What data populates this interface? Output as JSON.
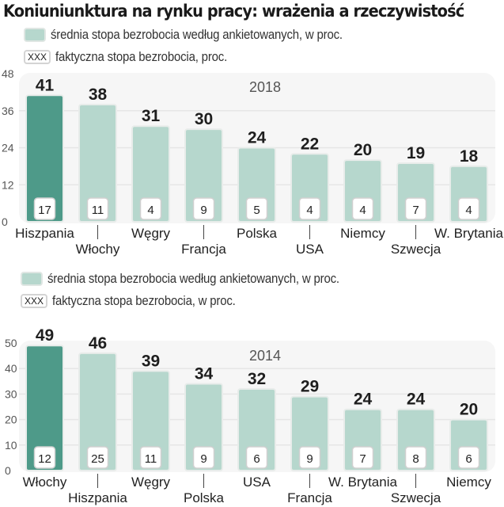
{
  "title": "Koniuniunktura na rynku pracy: wrażenia a rzeczywistość",
  "colors": {
    "highlight_bar": "#4e9a89",
    "bar": "#b6d7cd",
    "panel_bg": "#f6f6f6",
    "grid": "#e6e6e6"
  },
  "chart_data": [
    {
      "type": "bar",
      "title": "2018",
      "legend": {
        "survey_label": "średnia stopa bezrobocia według ankietowanych, w proc.",
        "actual_swatch": "XXX",
        "actual_label": "faktyczna stopa bezrobocia, proc."
      },
      "categories": [
        "Hiszpania",
        "Włochy",
        "Węgry",
        "Francja",
        "Polska",
        "USA",
        "Niemcy",
        "Szwecja",
        "W. Brytania"
      ],
      "series": [
        {
          "name": "średnia stopa bezrobocia według ankietowanych, w proc.",
          "values": [
            41,
            38,
            31,
            30,
            24,
            22,
            20,
            19,
            18
          ]
        },
        {
          "name": "faktyczna stopa bezrobocia, proc.",
          "values": [
            17,
            11,
            4,
            9,
            5,
            4,
            4,
            7,
            4
          ]
        }
      ],
      "highlight_index": 0,
      "yticks": [
        "0",
        "12",
        "24",
        "36",
        "48"
      ],
      "ylim": [
        0,
        48
      ],
      "xlabel": "",
      "ylabel": "",
      "grid": true
    },
    {
      "type": "bar",
      "title": "2014",
      "legend": {
        "survey_label": "średnia stopa bezrobocia według ankietowanych, w proc.",
        "actual_swatch": "XXX",
        "actual_label": "faktyczna stopa bezrobocia, w proc."
      },
      "categories": [
        "Włochy",
        "Hiszpania",
        "Węgry",
        "Polska",
        "USA",
        "Francja",
        "W. Brytania",
        "Szwecja",
        "Niemcy"
      ],
      "series": [
        {
          "name": "średnia stopa bezrobocia według ankietowanych, w proc.",
          "values": [
            49,
            46,
            39,
            34,
            32,
            29,
            24,
            24,
            20
          ]
        },
        {
          "name": "faktyczna stopa bezrobocia, w proc.",
          "values": [
            12,
            25,
            11,
            9,
            6,
            9,
            7,
            8,
            6
          ]
        }
      ],
      "highlight_index": 0,
      "yticks": [
        "0",
        "10",
        "20",
        "30",
        "40",
        "50"
      ],
      "ylim": [
        0,
        50
      ],
      "xlabel": "",
      "ylabel": "",
      "grid": true
    }
  ]
}
